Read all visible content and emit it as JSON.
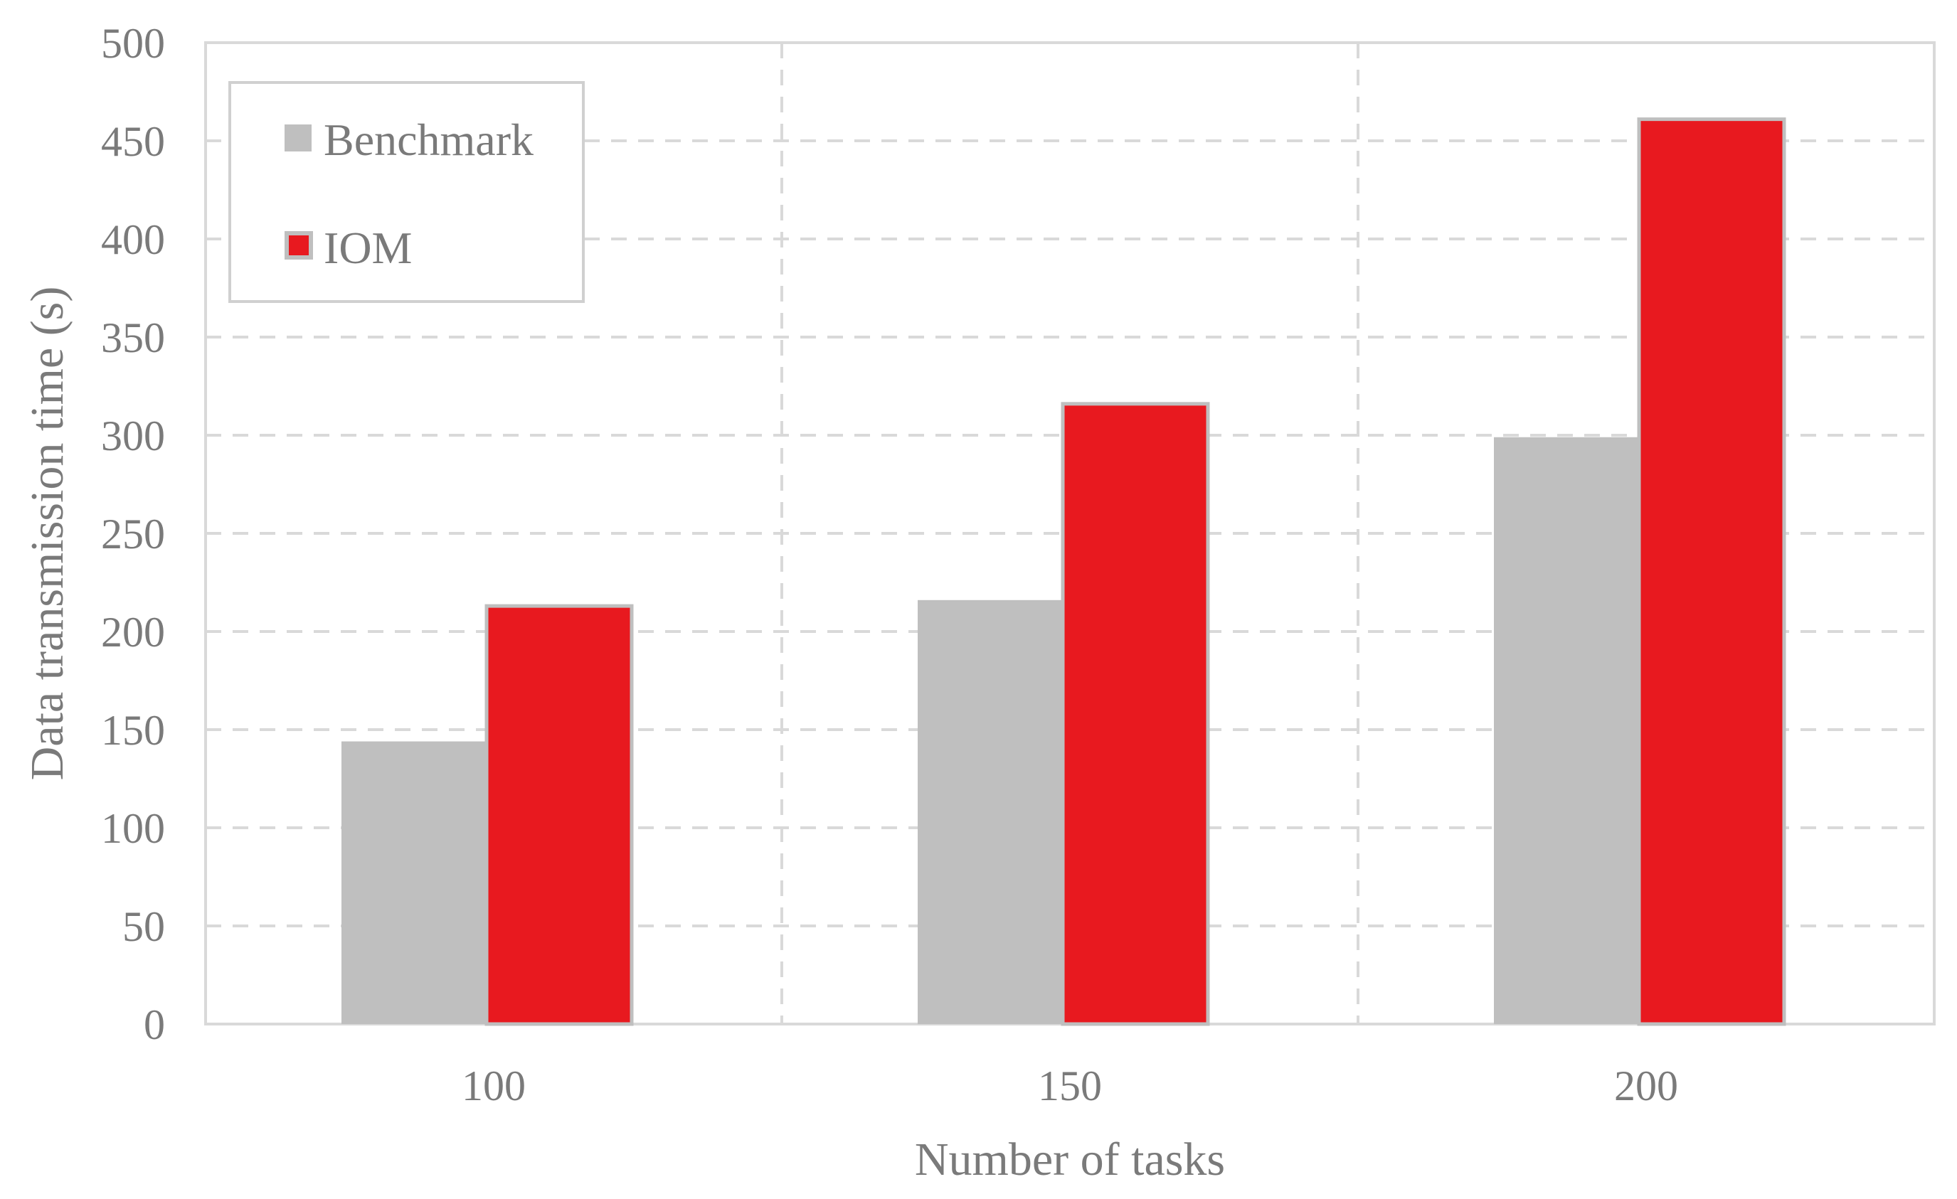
{
  "chart_data": {
    "type": "bar",
    "categories": [
      "100",
      "150",
      "200"
    ],
    "series": [
      {
        "name": "Benchmark",
        "values": [
          144,
          216,
          299
        ],
        "color": "#bfbfbf"
      },
      {
        "name": "IOM",
        "values": [
          213,
          316,
          461
        ],
        "color": "#e8191f"
      }
    ],
    "xlabel": "Number of tasks",
    "ylabel": "Data transmission time (s)",
    "ylim": [
      0,
      500
    ],
    "yticks": [
      "0",
      "50",
      "100",
      "150",
      "200",
      "250",
      "300",
      "350",
      "400",
      "450",
      "500"
    ],
    "grid": true,
    "legend_position": "top-left"
  }
}
